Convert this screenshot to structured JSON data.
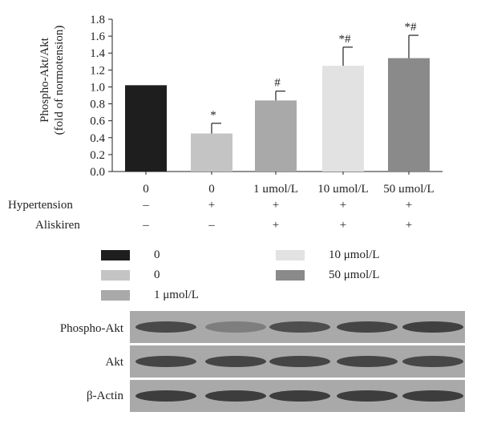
{
  "chart_data": {
    "type": "bar",
    "ylabel_line1": "Phospho-Akt/Akt",
    "ylabel_line2": "(fold of normotension)",
    "ylim": [
      0,
      1.8
    ],
    "yticks": [
      "0.0",
      "0.2",
      "0.4",
      "0.6",
      "0.8",
      "1.0",
      "1.2",
      "1.4",
      "1.6",
      "1.8"
    ],
    "categories": [
      "0",
      "0",
      "1 μmol/L",
      "10 μmol/L",
      "50 μmol/L"
    ],
    "values": [
      1.02,
      0.45,
      0.84,
      1.25,
      1.34
    ],
    "errors": [
      0.0,
      0.12,
      0.11,
      0.22,
      0.27
    ],
    "annotations": [
      "",
      "*",
      "#",
      "*#",
      "*#"
    ],
    "colors": [
      "#1e1e1e",
      "#c4c4c4",
      "#a9a9a9",
      "#e2e2e2",
      "#8a8a8a"
    ],
    "grid": false
  },
  "conditions": {
    "hypertension": {
      "label": "Hypertension",
      "values": [
        "–",
        "+",
        "+",
        "+",
        "+"
      ]
    },
    "aliskiren": {
      "label": "Aliskiren",
      "values": [
        "–",
        "–",
        "+",
        "+",
        "+"
      ]
    }
  },
  "legend": {
    "placement": "below",
    "items": [
      {
        "label": "0",
        "color": "#1e1e1e"
      },
      {
        "label": "0",
        "color": "#c4c4c4"
      },
      {
        "label": "1 μmol/L",
        "color": "#a9a9a9"
      },
      {
        "label": "10 μmol/L",
        "color": "#e2e2e2"
      },
      {
        "label": "50 μmol/L",
        "color": "#8a8a8a"
      }
    ]
  },
  "blot": {
    "rows": [
      {
        "label": "Phospho-Akt",
        "intensity": [
          0.78,
          0.35,
          0.74,
          0.82,
          0.86
        ]
      },
      {
        "label": "Akt",
        "intensity": [
          0.82,
          0.82,
          0.82,
          0.82,
          0.8
        ]
      },
      {
        "label": "β-Actin",
        "intensity": [
          0.88,
          0.88,
          0.88,
          0.88,
          0.88
        ]
      }
    ]
  }
}
